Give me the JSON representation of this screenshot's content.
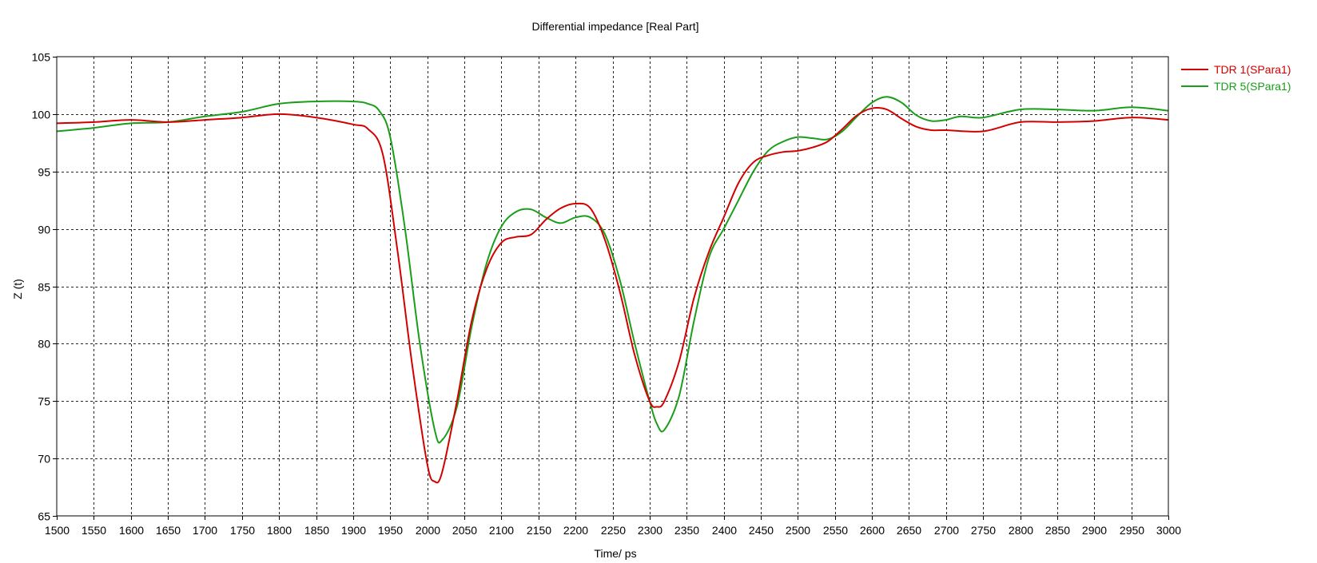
{
  "chart_data": {
    "type": "line",
    "title": "Differential impedance [Real Part]",
    "xlabel": "Time/ ps",
    "ylabel": "Z (t)",
    "xlim": [
      1500,
      3000
    ],
    "ylim": [
      65,
      105
    ],
    "xticks": [
      1500,
      1550,
      1600,
      1650,
      1700,
      1750,
      1800,
      1850,
      1900,
      1950,
      2000,
      2050,
      2100,
      2150,
      2200,
      2250,
      2300,
      2350,
      2400,
      2450,
      2500,
      2550,
      2600,
      2650,
      2700,
      2750,
      2800,
      2850,
      2900,
      2950,
      3000
    ],
    "yticks": [
      65,
      70,
      75,
      80,
      85,
      90,
      95,
      100,
      105
    ],
    "grid": true,
    "legend_position": "top-right",
    "series": [
      {
        "name": "TDR 1(SPara1)",
        "color": "#d40000",
        "x": [
          1500,
          1550,
          1600,
          1650,
          1700,
          1750,
          1800,
          1850,
          1900,
          1920,
          1940,
          1960,
          1980,
          2000,
          2010,
          2020,
          2040,
          2060,
          2080,
          2100,
          2120,
          2140,
          2160,
          2180,
          2200,
          2220,
          2240,
          2260,
          2280,
          2300,
          2310,
          2320,
          2340,
          2360,
          2380,
          2400,
          2420,
          2440,
          2460,
          2480,
          2500,
          2520,
          2540,
          2560,
          2580,
          2600,
          2620,
          2640,
          2660,
          2680,
          2700,
          2750,
          2800,
          2850,
          2900,
          2950,
          3000
        ],
        "values": [
          99.2,
          99.3,
          99.5,
          99.3,
          99.5,
          99.7,
          100.0,
          99.7,
          99.1,
          98.7,
          96.5,
          88.0,
          78.0,
          69.5,
          68.0,
          68.8,
          75.0,
          82.0,
          86.5,
          88.8,
          89.3,
          89.5,
          90.8,
          91.8,
          92.2,
          91.8,
          89.0,
          84.5,
          79.0,
          75.0,
          74.5,
          75.0,
          78.5,
          84.0,
          88.0,
          91.0,
          94.0,
          95.8,
          96.4,
          96.7,
          96.8,
          97.1,
          97.6,
          98.7,
          99.9,
          100.5,
          100.4,
          99.6,
          98.9,
          98.6,
          98.6,
          98.5,
          99.3,
          99.3,
          99.4,
          99.7,
          99.5
        ]
      },
      {
        "name": "TDR 5(SPara1)",
        "color": "#1a9e1a",
        "x": [
          1500,
          1550,
          1600,
          1650,
          1700,
          1750,
          1800,
          1850,
          1900,
          1920,
          1935,
          1950,
          1970,
          1990,
          2010,
          2020,
          2040,
          2060,
          2080,
          2100,
          2120,
          2140,
          2160,
          2180,
          2200,
          2220,
          2240,
          2260,
          2280,
          2300,
          2310,
          2320,
          2340,
          2360,
          2380,
          2400,
          2420,
          2440,
          2460,
          2480,
          2500,
          2520,
          2540,
          2560,
          2580,
          2600,
          2620,
          2640,
          2660,
          2680,
          2700,
          2720,
          2750,
          2800,
          2850,
          2900,
          2950,
          3000
        ],
        "values": [
          98.5,
          98.8,
          99.2,
          99.3,
          99.8,
          100.2,
          100.9,
          101.1,
          101.1,
          100.9,
          100.3,
          98.0,
          90.0,
          80.0,
          72.5,
          71.6,
          74.5,
          81.5,
          87.0,
          90.2,
          91.5,
          91.7,
          91.0,
          90.5,
          91.0,
          91.0,
          89.5,
          85.5,
          80.0,
          75.0,
          73.0,
          72.5,
          75.5,
          82.0,
          87.5,
          90.0,
          92.5,
          95.0,
          96.8,
          97.6,
          98.0,
          97.9,
          97.8,
          98.5,
          99.8,
          101.0,
          101.5,
          101.0,
          99.9,
          99.4,
          99.5,
          99.8,
          99.7,
          100.4,
          100.4,
          100.3,
          100.6,
          100.3
        ]
      }
    ]
  }
}
